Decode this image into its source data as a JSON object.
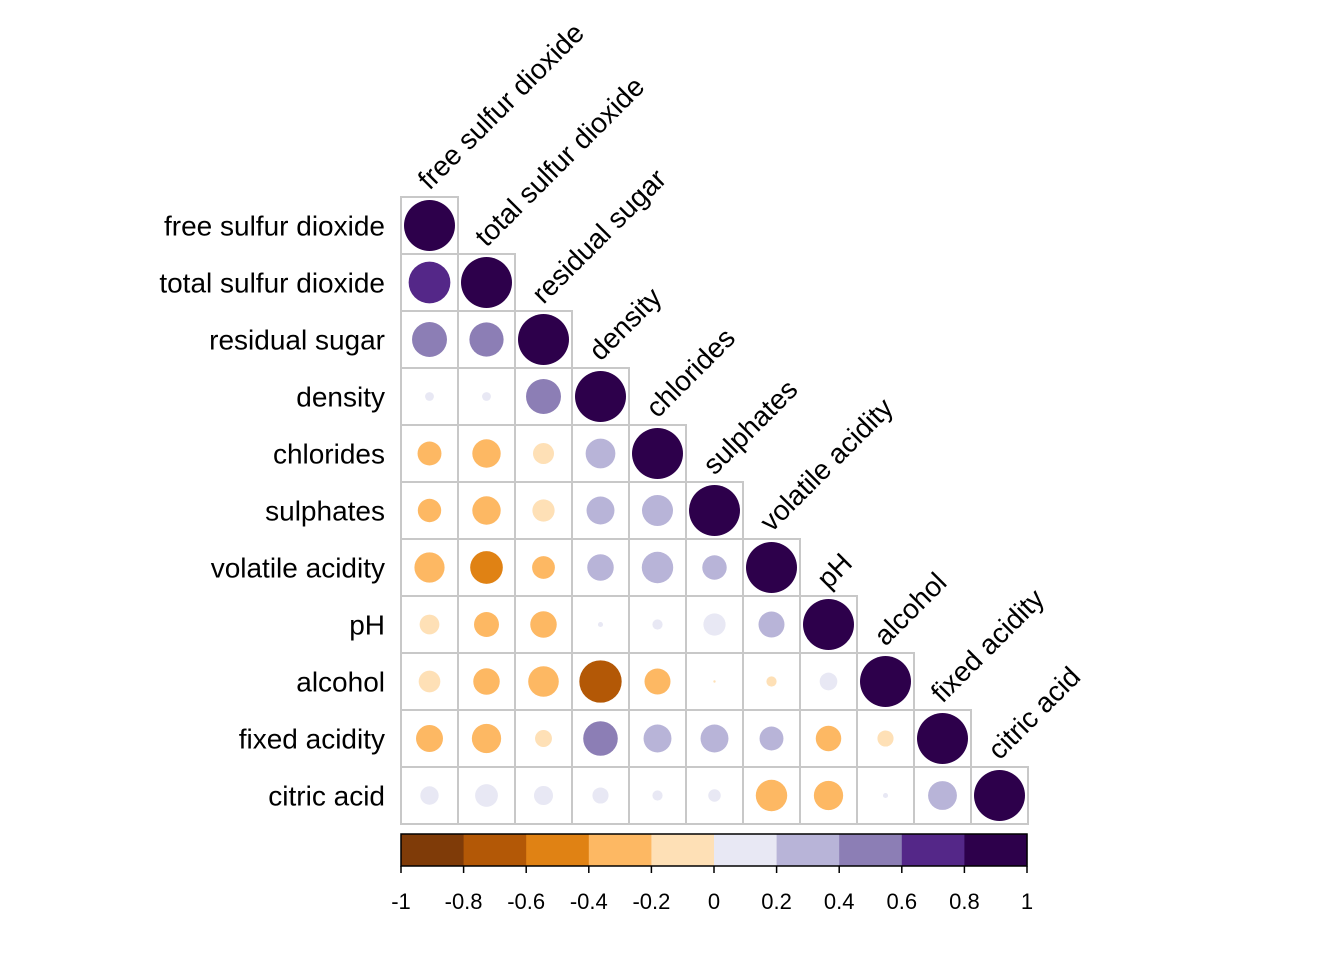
{
  "chart_data": {
    "type": "heatmap",
    "subtype": "correlation-matrix-lower-circles",
    "variables": [
      "free sulfur dioxide",
      "total sulfur dioxide",
      "residual sugar",
      "density",
      "chlorides",
      "sulphates",
      "volatile acidity",
      "pH",
      "alcohol",
      "fixed acidity",
      "citric acid"
    ],
    "matrix": [
      [
        1.0
      ],
      [
        0.67,
        1.0
      ],
      [
        0.47,
        0.45,
        1.0
      ],
      [
        0.03,
        0.03,
        0.47,
        1.0
      ],
      [
        -0.22,
        -0.31,
        -0.17,
        0.34,
        1.0
      ],
      [
        -0.21,
        -0.31,
        -0.19,
        0.3,
        0.37,
        1.0
      ],
      [
        -0.35,
        -0.41,
        -0.2,
        0.27,
        0.38,
        0.23,
        1.0
      ],
      [
        -0.15,
        -0.24,
        -0.27,
        0.01,
        0.04,
        0.19,
        0.26,
        1.0
      ],
      [
        -0.18,
        -0.27,
        -0.36,
        -0.69,
        -0.26,
        -0.0,
        -0.04,
        0.12,
        1.0
      ],
      [
        -0.28,
        -0.33,
        -0.11,
        0.46,
        0.3,
        0.3,
        0.22,
        -0.25,
        -0.1,
        1.0
      ],
      [
        0.13,
        0.2,
        0.14,
        0.1,
        0.04,
        0.06,
        -0.38,
        -0.33,
        0.01,
        0.32,
        1.0
      ]
    ],
    "legend": {
      "breaks": [
        -1,
        -0.8,
        -0.6,
        -0.4,
        -0.2,
        0,
        0.2,
        0.4,
        0.6,
        0.8,
        1
      ],
      "tick_labels": [
        "-1",
        "-0.8",
        "-0.6",
        "-0.4",
        "-0.2",
        "0",
        "0.2",
        "0.4",
        "0.6",
        "0.8",
        "1"
      ],
      "colors": [
        "#7F3B08",
        "#B35806",
        "#E08214",
        "#FDB863",
        "#FEE0B6",
        "#E8E8F4",
        "#B8B4D8",
        "#8C7EB5",
        "#542788",
        "#2D004B"
      ],
      "placement": "bottom"
    },
    "grid_color": "#C8C8C8",
    "grid": true
  }
}
